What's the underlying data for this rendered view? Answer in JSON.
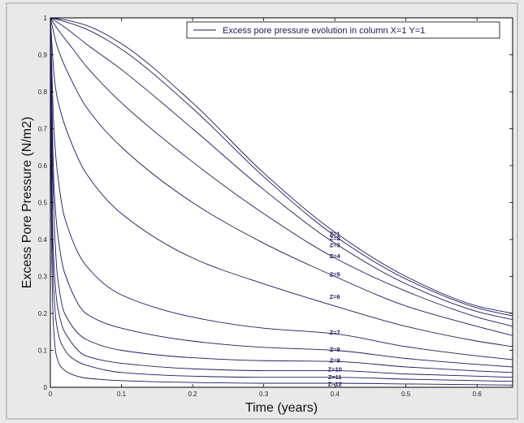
{
  "chart_data": {
    "type": "line",
    "title": "",
    "xlabel": "Time (years)",
    "ylabel": "Excess Pore Pressure (N/m2)",
    "xlim": [
      0,
      0.65
    ],
    "ylim": [
      0,
      1
    ],
    "x_ticks": [
      0,
      0.1,
      0.2,
      0.3,
      0.4,
      0.5,
      0.6
    ],
    "x_tick_labels": [
      "0",
      "0.1",
      "0.2",
      "0.3",
      "0.4",
      "0.5",
      "0.6"
    ],
    "y_ticks": [
      0,
      0.1,
      0.2,
      0.3,
      0.4,
      0.5,
      0.6,
      0.7,
      0.8,
      0.9,
      1
    ],
    "y_tick_labels": [
      "0",
      "0.1",
      "0.2",
      "0.3",
      "0.4",
      "0.5",
      "0.6",
      "0.7",
      "0.8",
      "0.9",
      "1"
    ],
    "grid": false,
    "legend": {
      "entry": "Excess pore pressure evolution in column X=1 Y=1",
      "placement": "top-right"
    },
    "line_color": "#1a1a5c",
    "series": [
      {
        "name": "Z=1",
        "x": [
          0,
          0.02,
          0.05,
          0.1,
          0.2,
          0.3,
          0.4,
          0.5,
          0.6,
          0.65
        ],
        "y": [
          1.0,
          0.995,
          0.98,
          0.93,
          0.77,
          0.58,
          0.42,
          0.3,
          0.22,
          0.2
        ]
      },
      {
        "name": "Z=2",
        "x": [
          0,
          0.02,
          0.05,
          0.1,
          0.2,
          0.3,
          0.4,
          0.5,
          0.6,
          0.65
        ],
        "y": [
          1.0,
          0.99,
          0.97,
          0.915,
          0.755,
          0.57,
          0.41,
          0.293,
          0.215,
          0.193
        ]
      },
      {
        "name": "Z=3",
        "x": [
          0,
          0.02,
          0.05,
          0.1,
          0.2,
          0.3,
          0.4,
          0.5,
          0.6,
          0.65
        ],
        "y": [
          1.0,
          0.975,
          0.93,
          0.86,
          0.7,
          0.535,
          0.39,
          0.28,
          0.205,
          0.183
        ]
      },
      {
        "name": "Z=4",
        "x": [
          0,
          0.01,
          0.03,
          0.05,
          0.1,
          0.2,
          0.3,
          0.4,
          0.5,
          0.6,
          0.65
        ],
        "y": [
          1.0,
          0.97,
          0.92,
          0.87,
          0.77,
          0.61,
          0.47,
          0.35,
          0.26,
          0.19,
          0.165
        ]
      },
      {
        "name": "Z=5",
        "x": [
          0,
          0.01,
          0.03,
          0.05,
          0.1,
          0.2,
          0.3,
          0.4,
          0.5,
          0.6,
          0.65
        ],
        "y": [
          1.0,
          0.92,
          0.83,
          0.76,
          0.65,
          0.5,
          0.39,
          0.3,
          0.22,
          0.165,
          0.14
        ]
      },
      {
        "name": "Z=6",
        "x": [
          0,
          0.005,
          0.01,
          0.03,
          0.05,
          0.1,
          0.2,
          0.3,
          0.4,
          0.5,
          0.6,
          0.65
        ],
        "y": [
          1.0,
          0.85,
          0.78,
          0.66,
          0.58,
          0.47,
          0.35,
          0.28,
          0.22,
          0.165,
          0.125,
          0.11
        ]
      },
      {
        "name": "Z=7",
        "x": [
          0,
          0.005,
          0.01,
          0.02,
          0.05,
          0.1,
          0.2,
          0.3,
          0.4,
          0.5,
          0.6,
          0.65
        ],
        "y": [
          1.0,
          0.7,
          0.58,
          0.46,
          0.33,
          0.25,
          0.19,
          0.16,
          0.145,
          0.11,
          0.085,
          0.075
        ]
      },
      {
        "name": "Z=8",
        "x": [
          0,
          0.005,
          0.01,
          0.02,
          0.05,
          0.1,
          0.2,
          0.3,
          0.4,
          0.5,
          0.6,
          0.65
        ],
        "y": [
          1.0,
          0.55,
          0.42,
          0.31,
          0.2,
          0.16,
          0.125,
          0.108,
          0.1,
          0.078,
          0.062,
          0.055
        ]
      },
      {
        "name": "Z=9",
        "x": [
          0,
          0.003,
          0.006,
          0.01,
          0.02,
          0.05,
          0.1,
          0.2,
          0.3,
          0.4,
          0.5,
          0.6,
          0.65
        ],
        "y": [
          1.0,
          0.6,
          0.42,
          0.3,
          0.2,
          0.13,
          0.1,
          0.08,
          0.072,
          0.07,
          0.055,
          0.044,
          0.04
        ]
      },
      {
        "name": "Z=10",
        "x": [
          0,
          0.003,
          0.006,
          0.01,
          0.02,
          0.05,
          0.1,
          0.2,
          0.3,
          0.4,
          0.5,
          0.6,
          0.65
        ],
        "y": [
          1.0,
          0.45,
          0.3,
          0.22,
          0.15,
          0.085,
          0.065,
          0.05,
          0.045,
          0.045,
          0.036,
          0.03,
          0.027
        ]
      },
      {
        "name": "Z=11",
        "x": [
          0,
          0.002,
          0.004,
          0.008,
          0.015,
          0.03,
          0.05,
          0.1,
          0.2,
          0.3,
          0.4,
          0.5,
          0.6,
          0.65
        ],
        "y": [
          1.0,
          0.5,
          0.3,
          0.18,
          0.12,
          0.08,
          0.06,
          0.04,
          0.03,
          0.027,
          0.027,
          0.022,
          0.018,
          0.016
        ]
      },
      {
        "name": "Z=12",
        "x": [
          0,
          0.001,
          0.002,
          0.004,
          0.008,
          0.015,
          0.03,
          0.05,
          0.1,
          0.2,
          0.3,
          0.4,
          0.5,
          0.6,
          0.65
        ],
        "y": [
          1.0,
          0.6,
          0.35,
          0.18,
          0.09,
          0.055,
          0.035,
          0.025,
          0.018,
          0.013,
          0.011,
          0.011,
          0.009,
          0.007,
          0.006
        ]
      }
    ],
    "curve_labels": [
      {
        "text": "Z=1",
        "x": 0.4,
        "y": 0.415
      },
      {
        "text": "Z=2",
        "x": 0.4,
        "y": 0.403
      },
      {
        "text": "Z=3",
        "x": 0.4,
        "y": 0.385
      },
      {
        "text": "Z=4",
        "x": 0.4,
        "y": 0.355
      },
      {
        "text": "Z=5",
        "x": 0.4,
        "y": 0.305
      },
      {
        "text": "Z=6",
        "x": 0.4,
        "y": 0.245
      },
      {
        "text": "Z=7",
        "x": 0.4,
        "y": 0.148
      },
      {
        "text": "Z=8",
        "x": 0.4,
        "y": 0.102
      },
      {
        "text": "Z=9",
        "x": 0.4,
        "y": 0.072
      },
      {
        "text": "Z=10",
        "x": 0.4,
        "y": 0.048
      },
      {
        "text": "Z=11",
        "x": 0.4,
        "y": 0.028
      },
      {
        "text": "Z=12",
        "x": 0.4,
        "y": 0.009
      }
    ]
  }
}
